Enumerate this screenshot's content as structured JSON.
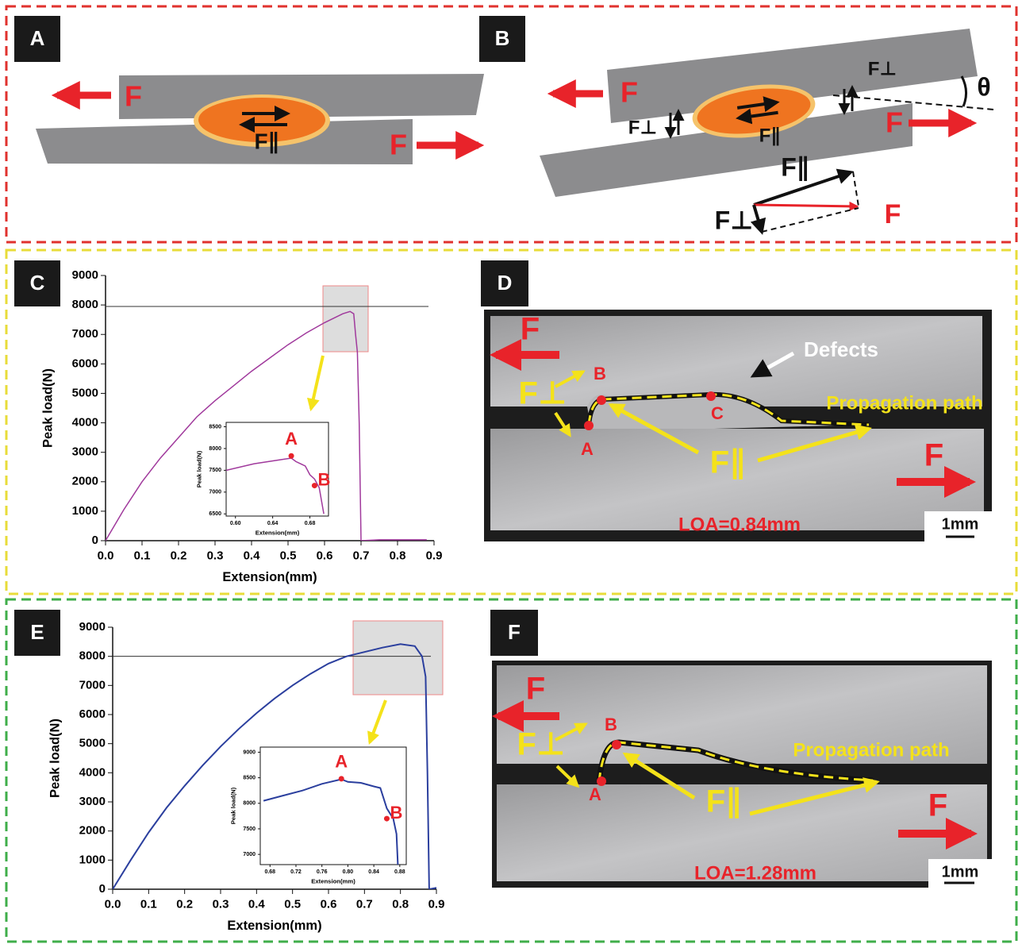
{
  "panel_labels": [
    "A",
    "B",
    "C",
    "D",
    "E",
    "F"
  ],
  "diagram_a": {
    "forces": [
      "F",
      "F",
      "F∥"
    ]
  },
  "diagram_b": {
    "forces": [
      "F",
      "F",
      "F⊥",
      "F⊥",
      "F∥",
      "θ"
    ],
    "decomposition": [
      "F∥",
      "F⊥",
      "F"
    ]
  },
  "photo_d": {
    "labels": [
      "F",
      "F⊥",
      "B",
      "A",
      "C",
      "F∥",
      "F",
      "Defects",
      "Propagation path",
      "LOA=0.84mm",
      "1mm"
    ]
  },
  "photo_f": {
    "labels": [
      "F",
      "F⊥",
      "B",
      "A",
      "F∥",
      "F",
      "Propagation path",
      "LOA=1.28mm",
      "1mm"
    ]
  },
  "chart_data": [
    {
      "type": "line",
      "xlabel": "Extension(mm)",
      "ylabel": "Peak load(N)",
      "color": "#a0399c",
      "x": [
        0,
        0.05,
        0.1,
        0.15,
        0.2,
        0.25,
        0.3,
        0.35,
        0.4,
        0.45,
        0.5,
        0.55,
        0.6,
        0.65,
        0.67,
        0.68,
        0.685,
        0.69,
        0.695,
        0.7,
        0.75,
        0.8,
        0.88
      ],
      "values": [
        0,
        1050,
        2000,
        2800,
        3500,
        4200,
        4750,
        5250,
        5750,
        6200,
        6650,
        7050,
        7400,
        7700,
        7780,
        7700,
        7000,
        6400,
        4000,
        0,
        30,
        30,
        30
      ],
      "hline": 7950,
      "xlim": [
        0,
        0.9
      ],
      "ylim": [
        0,
        9000
      ],
      "xticks": [
        {
          "value": 0,
          "label": "0.0"
        },
        0.1,
        0.2,
        0.3,
        0.4,
        0.5,
        0.6,
        0.7,
        0.8,
        0.9
      ],
      "yticks": [
        0,
        1000,
        2000,
        3000,
        4000,
        5000,
        6000,
        7000,
        8000,
        9000
      ]
    },
    {
      "type": "line",
      "xlabel": "Extension(mm)",
      "ylabel": "Peak load(N)",
      "color": "#a0399c",
      "x": [
        0.59,
        0.62,
        0.65,
        0.66,
        0.665,
        0.675,
        0.68,
        0.685,
        0.69,
        0.695
      ],
      "values": [
        7500,
        7650,
        7750,
        7780,
        7700,
        7600,
        7400,
        7300,
        7100,
        6500
      ],
      "points": {
        "x": [
          0.66,
          0.685
        ],
        "values": [
          7830,
          7150
        ],
        "labels": [
          "A",
          "B"
        ],
        "color": "#e8232a"
      },
      "xlim": [
        0.59,
        0.7
      ],
      "ylim": [
        6450,
        8600
      ],
      "xticks": [
        {
          "value": 0.6,
          "label": "0.60"
        },
        0.64,
        0.68
      ],
      "yticks": [
        6500,
        7000,
        7500,
        8000,
        8500
      ]
    },
    {
      "type": "line",
      "xlabel": "Extension(mm)",
      "ylabel": "Peak load(N)",
      "color": "#2b3f9e",
      "x": [
        0,
        0.05,
        0.1,
        0.15,
        0.2,
        0.25,
        0.3,
        0.35,
        0.4,
        0.45,
        0.5,
        0.55,
        0.6,
        0.65,
        0.7,
        0.75,
        0.8,
        0.84,
        0.86,
        0.87,
        0.875,
        0.88,
        0.9
      ],
      "values": [
        0,
        1000,
        1950,
        2800,
        3550,
        4250,
        4900,
        5500,
        6050,
        6550,
        7000,
        7400,
        7750,
        8000,
        8150,
        8300,
        8420,
        8350,
        8000,
        7300,
        4000,
        0,
        50
      ],
      "hline": 8000,
      "xlim": [
        0,
        0.9
      ],
      "ylim": [
        0,
        9000
      ],
      "xticks": [
        {
          "value": 0,
          "label": "0.0"
        },
        0.1,
        0.2,
        0.3,
        0.4,
        0.5,
        0.6,
        0.7,
        0.8,
        0.9
      ],
      "yticks": [
        0,
        1000,
        2000,
        3000,
        4000,
        5000,
        6000,
        7000,
        8000,
        9000
      ]
    },
    {
      "type": "line",
      "xlabel": "Extension(mm)",
      "ylabel": "Peak load(N)",
      "color": "#2b3f9e",
      "x": [
        0.67,
        0.7,
        0.73,
        0.76,
        0.79,
        0.8,
        0.82,
        0.84,
        0.85,
        0.86,
        0.87,
        0.875,
        0.877
      ],
      "values": [
        8050,
        8150,
        8250,
        8380,
        8470,
        8420,
        8400,
        8330,
        8300,
        7900,
        7700,
        7400,
        6800
      ],
      "points": {
        "x": [
          0.79,
          0.86
        ],
        "values": [
          8480,
          7700
        ],
        "labels": [
          "A",
          "B"
        ],
        "color": "#e8232a"
      },
      "xlim": [
        0.665,
        0.89
      ],
      "ylim": [
        6800,
        9100
      ],
      "xticks": [
        {
          "value": 0.68,
          "label": "0.68"
        },
        0.72,
        0.76,
        {
          "value": 0.8,
          "label": "0.80"
        },
        0.84,
        0.88
      ],
      "yticks": [
        7000,
        7500,
        8000,
        8500,
        9000
      ]
    }
  ]
}
